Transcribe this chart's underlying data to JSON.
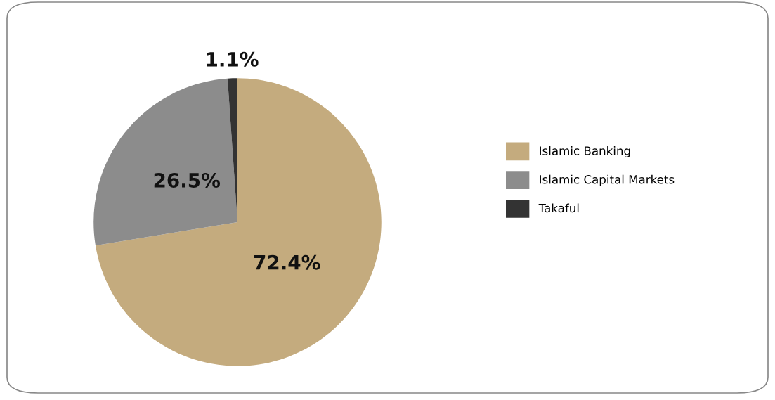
{
  "chart_data": {
    "type": "pie",
    "categories": [
      "Islamic Banking",
      "Islamic Capital Markets",
      "Takaful"
    ],
    "values": [
      72.4,
      26.5,
      1.1
    ],
    "colors": [
      "#c4ab7e",
      "#8c8c8c",
      "#333333"
    ],
    "value_labels": [
      "72.4%",
      "26.5%",
      "1.1%"
    ],
    "legend": "right"
  }
}
